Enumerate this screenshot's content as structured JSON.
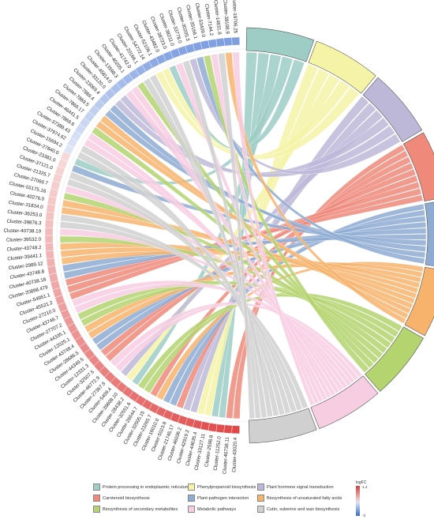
{
  "clusters": [
    {
      "label": "Cluster-43020.4",
      "lfc": 1.0
    },
    {
      "label": "Cluster-40738.11",
      "lfc": 0.98
    },
    {
      "label": "Cluster-11252.0",
      "lfc": 0.96
    },
    {
      "label": "Cluster-2598.8",
      "lfc": 0.94
    },
    {
      "label": "Cluster-33127.11",
      "lfc": 0.92
    },
    {
      "label": "Cluster-44635.4",
      "lfc": 0.9
    },
    {
      "label": "Cluster-42919.2",
      "lfc": 0.88
    },
    {
      "label": "Cluster-46036.2",
      "lfc": 0.86
    },
    {
      "label": "Cluster-21745.17",
      "lfc": 0.84
    },
    {
      "label": "Cluster-5023.8",
      "lfc": 0.82
    },
    {
      "label": "Cluster-16010.0",
      "lfc": 0.8
    },
    {
      "label": "Cluster-23265.7",
      "lfc": 0.78
    },
    {
      "label": "Cluster-32505.15",
      "lfc": 0.76
    },
    {
      "label": "Cluster-26644.7",
      "lfc": 0.74
    },
    {
      "label": "Cluster-32551.6",
      "lfc": 0.72
    },
    {
      "label": "Cluster-28438.2",
      "lfc": 0.7
    },
    {
      "label": "Cluster-39808.10",
      "lfc": 0.68
    },
    {
      "label": "Cluster-5409.4",
      "lfc": 0.66
    },
    {
      "label": "Cluster-27367.9",
      "lfc": 0.64
    },
    {
      "label": "Cluster-46772.9",
      "lfc": 0.62
    },
    {
      "label": "Cluster-32507.5",
      "lfc": 0.6
    },
    {
      "label": "Cluster-12331.3",
      "lfc": 0.58
    },
    {
      "label": "Cluster-44349.5",
      "lfc": 0.56
    },
    {
      "label": "Cluster-28686.5",
      "lfc": 0.54
    },
    {
      "label": "Cluster-43748.4",
      "lfc": 0.52
    },
    {
      "label": "Cluster-12025.1",
      "lfc": 0.5
    },
    {
      "label": "Cluster-44335.1",
      "lfc": 0.48
    },
    {
      "label": "Cluster-27707.2",
      "lfc": 0.46
    },
    {
      "label": "Cluster-43748.7",
      "lfc": 0.44
    },
    {
      "label": "Cluster-27210.0",
      "lfc": 0.42
    },
    {
      "label": "Cluster-45521.2",
      "lfc": 0.4
    },
    {
      "label": "Cluster-54951.1",
      "lfc": 0.38
    },
    {
      "label": "Cluster-20898.479",
      "lfc": 0.36
    },
    {
      "label": "Cluster-40738.18",
      "lfc": 0.34
    },
    {
      "label": "Cluster-43748.8",
      "lfc": 0.32
    },
    {
      "label": "Cluster-2989.12",
      "lfc": 0.3
    },
    {
      "label": "Cluster-39441.1",
      "lfc": 0.28
    },
    {
      "label": "Cluster-43748.2",
      "lfc": 0.26
    },
    {
      "label": "Cluster-39532.0",
      "lfc": 0.24
    },
    {
      "label": "Cluster-40738.19",
      "lfc": 0.22
    },
    {
      "label": "Cluster-39876.3",
      "lfc": 0.2
    },
    {
      "label": "Cluster-36253.0",
      "lfc": 0.18
    },
    {
      "label": "Cluster-31834.0",
      "lfc": 0.16
    },
    {
      "label": "Cluster-40276.0",
      "lfc": 0.14
    },
    {
      "label": "Cluster-55175.16",
      "lfc": 0.12
    },
    {
      "label": "Cluster-27069.7",
      "lfc": 0.1
    },
    {
      "label": "Cluster-21325.7",
      "lfc": 0.08
    },
    {
      "label": "Cluster-37121.0",
      "lfc": 0.06
    },
    {
      "label": "Cluster-23381.0",
      "lfc": 0.04
    },
    {
      "label": "Cluster-27840.0",
      "lfc": 0.02
    },
    {
      "label": "Cluster-15694.2",
      "lfc": -0.05
    },
    {
      "label": "Cluster-37974.62",
      "lfc": -0.1
    },
    {
      "label": "Cluster-37389.43",
      "lfc": -0.15
    },
    {
      "label": "Cluster-7869.6",
      "lfc": -0.2
    },
    {
      "label": "Cluster-46441.5",
      "lfc": -0.25
    },
    {
      "label": "Cluster-7869.17",
      "lfc": -0.3
    },
    {
      "label": "Cluster-7869.5",
      "lfc": -0.35
    },
    {
      "label": "Cluster-7869.4",
      "lfc": -0.4
    },
    {
      "label": "Cluster-23069.4",
      "lfc": -0.45
    },
    {
      "label": "Cluster-33120.0",
      "lfc": -0.5
    },
    {
      "label": "Cluster-45814.0",
      "lfc": -0.55
    },
    {
      "label": "Cluster-13598.3",
      "lfc": -0.6
    },
    {
      "label": "Cluster-40205.1",
      "lfc": -0.65
    },
    {
      "label": "Cluster-41742.0",
      "lfc": -0.7
    },
    {
      "label": "Cluster-20166.1",
      "lfc": -0.75
    },
    {
      "label": "Cluster-54772.14",
      "lfc": -0.8
    },
    {
      "label": "Cluster-52106.1",
      "lfc": -0.85
    },
    {
      "label": "Cluster-43482.0",
      "lfc": -0.88
    },
    {
      "label": "Cluster-38723.0",
      "lfc": -0.9
    },
    {
      "label": "Cluster-38211.0",
      "lfc": -0.92
    },
    {
      "label": "Cluster-33778.0",
      "lfc": -0.94
    },
    {
      "label": "Cluster-30205.3",
      "lfc": -0.95
    },
    {
      "label": "Cluster-35166.1",
      "lfc": -0.96
    },
    {
      "label": "Cluster-53409.0",
      "lfc": -0.97
    },
    {
      "label": "Cluster-7144.2",
      "lfc": -0.98
    },
    {
      "label": "Cluster-14831.8",
      "lfc": -0.99
    },
    {
      "label": "Cluster-39108.9",
      "lfc": -1.0
    },
    {
      "label": "Cluster-19706.25",
      "lfc": -1.0
    }
  ],
  "pathways": [
    {
      "label": "Protein processing in endoplasmic reticulum",
      "color": "#9ecdc6"
    },
    {
      "label": "Phenylpropanoid biosynthesis",
      "color": "#f5f3a6"
    },
    {
      "label": "Plant hormone signal transduction",
      "color": "#bdb8d8"
    },
    {
      "label": "Carotenoid biosynthesis",
      "color": "#ef8a7b"
    },
    {
      "label": "Plant-pathogen interaction",
      "color": "#8eacd2"
    },
    {
      "label": "Biosynthesis of unsaturated fatty acids",
      "color": "#f7b36c"
    },
    {
      "label": "Biosynthesis of secondary metabolites",
      "color": "#b4d46f"
    },
    {
      "label": "Metabolic pathways",
      "color": "#f7cde2"
    },
    {
      "label": "Cutin, suberine and wax biosynthesis",
      "color": "#d0d0d0"
    }
  ],
  "scale": {
    "title": "logFC",
    "max": "1.4",
    "min": "-3",
    "high_color": "#d04040",
    "low_color": "#3a6ac8"
  }
}
